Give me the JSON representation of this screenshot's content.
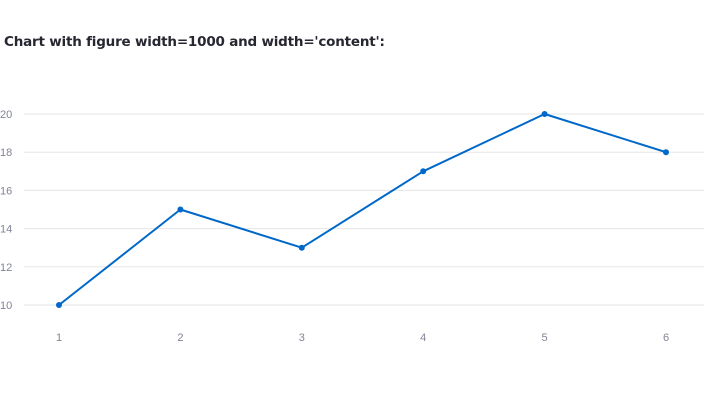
{
  "page": {
    "heading": "Chart with figure width=1000 and width='content':"
  },
  "colors": {
    "line": "#0068c9",
    "grid": "#e6e6e6",
    "tick_text": "#808495",
    "heading_text": "#262730"
  },
  "chart_data": {
    "type": "line",
    "x": [
      1,
      2,
      3,
      4,
      5,
      6
    ],
    "series": [
      {
        "values": [
          10,
          15,
          13,
          17,
          20,
          18
        ]
      }
    ],
    "x_ticks": [
      "1",
      "2",
      "3",
      "4",
      "5",
      "6"
    ],
    "y_ticks": [
      10,
      12,
      14,
      16,
      18,
      20
    ],
    "xlim": [
      1,
      6
    ],
    "ylim": [
      10,
      20
    ],
    "grid": "horizontal",
    "markers": true,
    "title": "",
    "xlabel": "",
    "ylabel": ""
  }
}
